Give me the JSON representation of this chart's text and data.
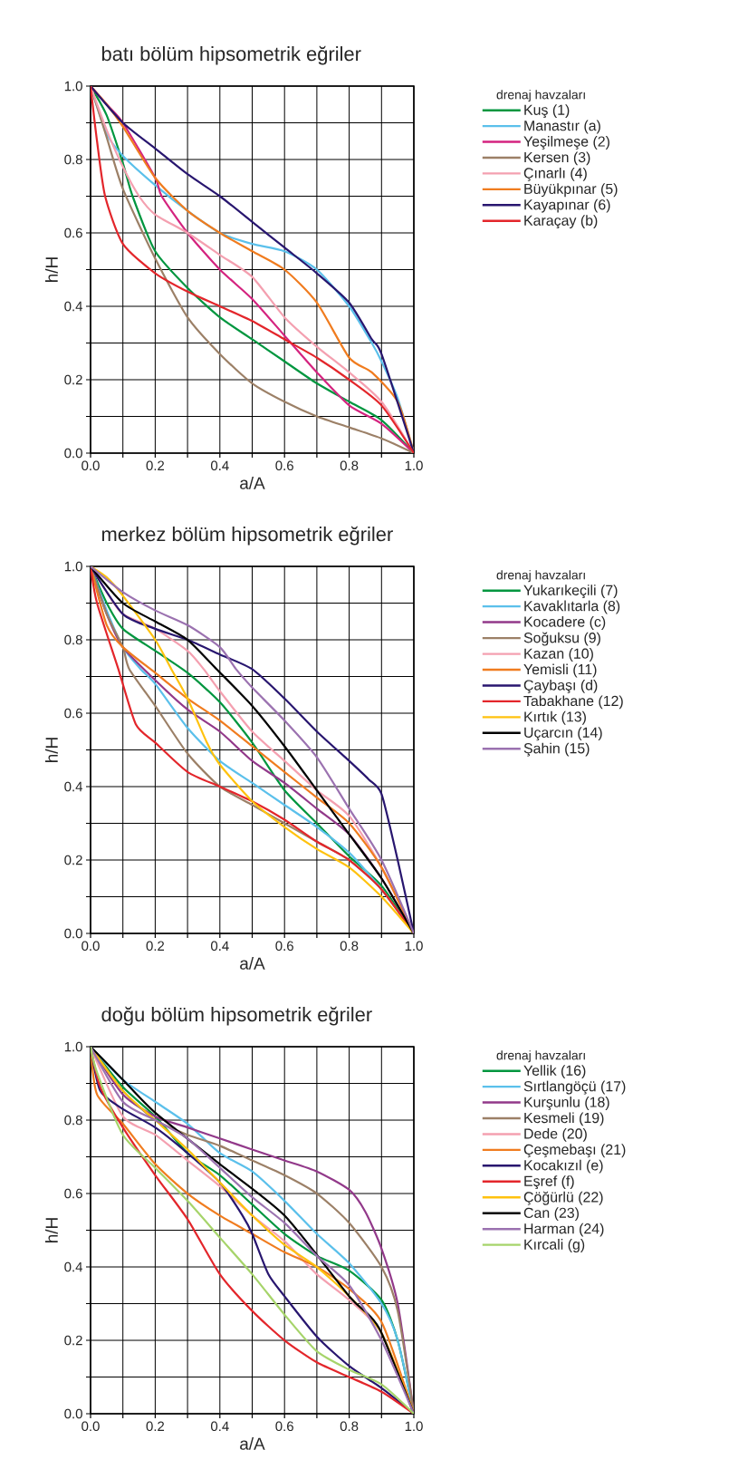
{
  "chart_data": [
    {
      "type": "line",
      "title": "batı bölüm hipsometrik eğriler",
      "xlabel": "a/A",
      "ylabel": "h/H",
      "legend_title": "drenaj havzaları",
      "legend": "right",
      "grid": true,
      "xlim": [
        0,
        1
      ],
      "ylim": [
        0,
        1
      ],
      "xticks": [
        {
          "value": 0,
          "label": "0.0"
        },
        {
          "value": 0.1,
          "label": null
        },
        {
          "value": 0.2,
          "label": "0.2"
        },
        {
          "value": 0.3,
          "label": null
        },
        {
          "value": 0.4,
          "label": "0.4"
        },
        {
          "value": 0.5,
          "label": null
        },
        {
          "value": 0.6,
          "label": "0.6"
        },
        {
          "value": 0.7,
          "label": null
        },
        {
          "value": 0.8,
          "label": "0.8"
        },
        {
          "value": 0.9,
          "label": null
        },
        {
          "value": 1,
          "label": "1.0"
        }
      ],
      "yticks": [
        {
          "value": 0,
          "label": "0.0"
        },
        {
          "value": 0.1,
          "label": null
        },
        {
          "value": 0.2,
          "label": "0.2"
        },
        {
          "value": 0.3,
          "label": null
        },
        {
          "value": 0.4,
          "label": "0.4"
        },
        {
          "value": 0.5,
          "label": null
        },
        {
          "value": 0.6,
          "label": "0.6"
        },
        {
          "value": 0.7,
          "label": null
        },
        {
          "value": 0.8,
          "label": "0.8"
        },
        {
          "value": 0.9,
          "label": null
        },
        {
          "value": 1,
          "label": "1.0"
        }
      ],
      "series": [
        {
          "name": "Kuş (1)",
          "color": "#00963f",
          "x": [
            0,
            0.05,
            0.1,
            0.13,
            0.2,
            0.3,
            0.4,
            0.5,
            0.6,
            0.7,
            0.8,
            0.9,
            1
          ],
          "values": [
            1,
            0.92,
            0.79,
            0.7,
            0.55,
            0.45,
            0.37,
            0.31,
            0.25,
            0.19,
            0.14,
            0.09,
            0
          ]
        },
        {
          "name": "Manastır (a)",
          "color": "#5bc0eb",
          "x": [
            0,
            0.05,
            0.1,
            0.2,
            0.3,
            0.4,
            0.5,
            0.6,
            0.7,
            0.8,
            0.87,
            0.9,
            0.95,
            1
          ],
          "values": [
            1,
            0.87,
            0.81,
            0.73,
            0.66,
            0.6,
            0.57,
            0.55,
            0.5,
            0.4,
            0.3,
            0.25,
            0.15,
            0
          ]
        },
        {
          "name": "Yeşilmeşe (2)",
          "color": "#d4237f",
          "x": [
            0,
            0.05,
            0.1,
            0.2,
            0.22,
            0.3,
            0.4,
            0.5,
            0.6,
            0.7,
            0.8,
            0.9,
            1
          ],
          "values": [
            1,
            0.95,
            0.9,
            0.75,
            0.7,
            0.6,
            0.5,
            0.42,
            0.32,
            0.22,
            0.13,
            0.08,
            0
          ]
        },
        {
          "name": "Kersen (3)",
          "color": "#9c8067",
          "x": [
            0,
            0.05,
            0.1,
            0.2,
            0.3,
            0.4,
            0.5,
            0.6,
            0.7,
            0.8,
            0.9,
            1
          ],
          "values": [
            1,
            0.86,
            0.72,
            0.53,
            0.37,
            0.27,
            0.19,
            0.14,
            0.1,
            0.07,
            0.04,
            0
          ]
        },
        {
          "name": "Çınarlı (4)",
          "color": "#f4a0b0",
          "x": [
            0,
            0.05,
            0.1,
            0.15,
            0.2,
            0.3,
            0.4,
            0.5,
            0.6,
            0.7,
            0.8,
            0.9,
            1
          ],
          "values": [
            1,
            0.88,
            0.78,
            0.7,
            0.65,
            0.6,
            0.54,
            0.48,
            0.37,
            0.29,
            0.22,
            0.14,
            0
          ]
        },
        {
          "name": "Büyükpınar (5)",
          "color": "#f07c1f",
          "x": [
            0,
            0.05,
            0.1,
            0.2,
            0.3,
            0.4,
            0.5,
            0.6,
            0.7,
            0.8,
            0.87,
            0.95,
            1
          ],
          "values": [
            1,
            0.95,
            0.89,
            0.75,
            0.66,
            0.6,
            0.55,
            0.5,
            0.41,
            0.26,
            0.22,
            0.14,
            0
          ]
        },
        {
          "name": "Kayapınar (6)",
          "color": "#28166f",
          "x": [
            0,
            0.1,
            0.2,
            0.3,
            0.4,
            0.5,
            0.6,
            0.7,
            0.8,
            0.87,
            0.9,
            1
          ],
          "values": [
            1,
            0.9,
            0.83,
            0.76,
            0.7,
            0.63,
            0.56,
            0.49,
            0.41,
            0.31,
            0.27,
            0
          ]
        },
        {
          "name": "Karaçay (b)",
          "color": "#e3262b",
          "x": [
            0,
            0.02,
            0.045,
            0.1,
            0.2,
            0.3,
            0.4,
            0.5,
            0.6,
            0.7,
            0.8,
            0.9,
            1
          ],
          "values": [
            1,
            0.85,
            0.7,
            0.57,
            0.49,
            0.44,
            0.4,
            0.36,
            0.31,
            0.26,
            0.2,
            0.13,
            0
          ]
        }
      ]
    },
    {
      "type": "line",
      "title": "merkez bölüm hipsometrik eğriler",
      "xlabel": "a/A",
      "ylabel": "h/H",
      "legend_title": "drenaj havzaları",
      "legend": "right",
      "grid": true,
      "xlim": [
        0,
        1
      ],
      "ylim": [
        0,
        1
      ],
      "xticks": [
        {
          "value": 0,
          "label": "0.0"
        },
        {
          "value": 0.1,
          "label": null
        },
        {
          "value": 0.2,
          "label": "0.2"
        },
        {
          "value": 0.3,
          "label": null
        },
        {
          "value": 0.4,
          "label": "0.4"
        },
        {
          "value": 0.5,
          "label": null
        },
        {
          "value": 0.6,
          "label": "0.6"
        },
        {
          "value": 0.7,
          "label": null
        },
        {
          "value": 0.8,
          "label": "0.8"
        },
        {
          "value": 0.9,
          "label": null
        },
        {
          "value": 1,
          "label": "1.0"
        }
      ],
      "yticks": [
        {
          "value": 0,
          "label": "0.0"
        },
        {
          "value": 0.1,
          "label": null
        },
        {
          "value": 0.2,
          "label": "0.2"
        },
        {
          "value": 0.3,
          "label": null
        },
        {
          "value": 0.4,
          "label": "0.4"
        },
        {
          "value": 0.5,
          "label": null
        },
        {
          "value": 0.6,
          "label": "0.6"
        },
        {
          "value": 0.7,
          "label": null
        },
        {
          "value": 0.8,
          "label": "0.8"
        },
        {
          "value": 0.9,
          "label": null
        },
        {
          "value": 1,
          "label": "1.0"
        }
      ],
      "series": [
        {
          "name": "Yukarıkeçili (7)",
          "color": "#00963f",
          "x": [
            0,
            0.05,
            0.1,
            0.2,
            0.3,
            0.4,
            0.5,
            0.6,
            0.7,
            0.8,
            0.9,
            1
          ],
          "values": [
            1,
            0.9,
            0.83,
            0.77,
            0.71,
            0.63,
            0.52,
            0.39,
            0.3,
            0.21,
            0.13,
            0
          ]
        },
        {
          "name": "Kavaklıtarla (8)",
          "color": "#5bc0eb",
          "x": [
            0,
            0.05,
            0.1,
            0.155,
            0.2,
            0.3,
            0.4,
            0.5,
            0.6,
            0.7,
            0.8,
            0.9,
            1
          ],
          "values": [
            1,
            0.88,
            0.78,
            0.72,
            0.68,
            0.56,
            0.47,
            0.41,
            0.35,
            0.29,
            0.22,
            0.12,
            0
          ]
        },
        {
          "name": "Kocadere (c)",
          "color": "#92398a",
          "x": [
            0,
            0.05,
            0.1,
            0.2,
            0.3,
            0.4,
            0.5,
            0.6,
            0.7,
            0.8,
            0.9,
            1
          ],
          "values": [
            1,
            0.87,
            0.78,
            0.69,
            0.61,
            0.55,
            0.47,
            0.41,
            0.34,
            0.27,
            0.15,
            0
          ]
        },
        {
          "name": "Soğuksu (9)",
          "color": "#9c8067",
          "x": [
            0,
            0.05,
            0.1,
            0.12,
            0.2,
            0.3,
            0.4,
            0.5,
            0.6,
            0.7,
            0.8,
            0.9,
            1
          ],
          "values": [
            1,
            0.87,
            0.78,
            0.72,
            0.62,
            0.49,
            0.4,
            0.35,
            0.3,
            0.25,
            0.2,
            0.12,
            0
          ]
        },
        {
          "name": "Kazan (10)",
          "color": "#f4a0b0",
          "x": [
            0,
            0.05,
            0.1,
            0.2,
            0.3,
            0.35,
            0.4,
            0.5,
            0.6,
            0.7,
            0.8,
            0.9,
            1
          ],
          "values": [
            1,
            0.93,
            0.87,
            0.83,
            0.77,
            0.72,
            0.66,
            0.55,
            0.47,
            0.39,
            0.32,
            0.18,
            0
          ]
        },
        {
          "name": "Yemisli (11)",
          "color": "#f07c1f",
          "x": [
            0,
            0.05,
            0.1,
            0.2,
            0.3,
            0.4,
            0.5,
            0.6,
            0.7,
            0.8,
            0.9,
            1
          ],
          "values": [
            1,
            0.84,
            0.78,
            0.71,
            0.64,
            0.58,
            0.51,
            0.44,
            0.37,
            0.3,
            0.18,
            0
          ]
        },
        {
          "name": "Çaybaşı (d)",
          "color": "#28166f",
          "x": [
            0,
            0.1,
            0.2,
            0.3,
            0.4,
            0.5,
            0.6,
            0.7,
            0.8,
            0.86,
            0.9,
            0.95,
            1
          ],
          "values": [
            1,
            0.87,
            0.83,
            0.8,
            0.76,
            0.72,
            0.64,
            0.55,
            0.47,
            0.42,
            0.38,
            0.2,
            0
          ]
        },
        {
          "name": "Tabakhane (12)",
          "color": "#e3262b",
          "x": [
            0,
            0.02,
            0.086,
            0.14,
            0.2,
            0.3,
            0.4,
            0.5,
            0.6,
            0.7,
            0.8,
            0.9,
            1
          ],
          "values": [
            1,
            0.9,
            0.72,
            0.57,
            0.52,
            0.44,
            0.4,
            0.36,
            0.31,
            0.25,
            0.2,
            0.12,
            0
          ]
        },
        {
          "name": "Kırtık (13)",
          "color": "#ffc20e",
          "x": [
            0,
            0.05,
            0.1,
            0.2,
            0.25,
            0.3,
            0.36,
            0.4,
            0.5,
            0.6,
            0.7,
            0.8,
            0.9,
            1
          ],
          "values": [
            1,
            0.97,
            0.92,
            0.8,
            0.72,
            0.64,
            0.52,
            0.46,
            0.36,
            0.29,
            0.23,
            0.18,
            0.1,
            0
          ]
        },
        {
          "name": "Uçarcın (14)",
          "color": "#000000",
          "x": [
            0,
            0.1,
            0.2,
            0.3,
            0.39,
            0.5,
            0.6,
            0.7,
            0.8,
            0.9,
            1
          ],
          "values": [
            1,
            0.9,
            0.85,
            0.8,
            0.72,
            0.62,
            0.51,
            0.39,
            0.27,
            0.15,
            0
          ]
        },
        {
          "name": "Şahin (15)",
          "color": "#9b72b0",
          "x": [
            0,
            0.1,
            0.2,
            0.3,
            0.4,
            0.45,
            0.5,
            0.6,
            0.7,
            0.8,
            0.9,
            1
          ],
          "values": [
            1,
            0.93,
            0.88,
            0.84,
            0.78,
            0.72,
            0.67,
            0.58,
            0.48,
            0.34,
            0.2,
            0
          ]
        }
      ]
    },
    {
      "type": "line",
      "title": "doğu bölüm hipsometrik eğriler",
      "xlabel": "a/A",
      "ylabel": "h/H",
      "legend_title": "drenaj havzaları",
      "legend": "right",
      "grid": true,
      "xlim": [
        0,
        1
      ],
      "ylim": [
        0,
        1
      ],
      "xticks": [
        {
          "value": 0,
          "label": "0.0"
        },
        {
          "value": 0.1,
          "label": null
        },
        {
          "value": 0.2,
          "label": "0.2"
        },
        {
          "value": 0.3,
          "label": null
        },
        {
          "value": 0.4,
          "label": "0.4"
        },
        {
          "value": 0.5,
          "label": null
        },
        {
          "value": 0.6,
          "label": "0.6"
        },
        {
          "value": 0.7,
          "label": null
        },
        {
          "value": 0.8,
          "label": "0.8"
        },
        {
          "value": 0.9,
          "label": null
        },
        {
          "value": 1,
          "label": "1.0"
        }
      ],
      "yticks": [
        {
          "value": 0,
          "label": "0.0"
        },
        {
          "value": 0.1,
          "label": null
        },
        {
          "value": 0.2,
          "label": "0.2"
        },
        {
          "value": 0.3,
          "label": null
        },
        {
          "value": 0.4,
          "label": "0.4"
        },
        {
          "value": 0.5,
          "label": null
        },
        {
          "value": 0.6,
          "label": "0.6"
        },
        {
          "value": 0.7,
          "label": null
        },
        {
          "value": 0.8,
          "label": "0.8"
        },
        {
          "value": 0.9,
          "label": null
        },
        {
          "value": 1,
          "label": "1.0"
        }
      ],
      "series": [
        {
          "name": "Yellik (16)",
          "color": "#00963f",
          "x": [
            0,
            0.1,
            0.2,
            0.3,
            0.4,
            0.5,
            0.6,
            0.7,
            0.8,
            0.9,
            0.95,
            1
          ],
          "values": [
            1,
            0.89,
            0.81,
            0.71,
            0.65,
            0.57,
            0.49,
            0.43,
            0.39,
            0.31,
            0.2,
            0
          ]
        },
        {
          "name": "Sırtlangöçü (17)",
          "color": "#5bc0eb",
          "x": [
            0,
            0.1,
            0.2,
            0.3,
            0.4,
            0.5,
            0.6,
            0.7,
            0.8,
            0.9,
            0.95,
            1
          ],
          "values": [
            1,
            0.91,
            0.85,
            0.79,
            0.71,
            0.66,
            0.58,
            0.49,
            0.41,
            0.3,
            0.2,
            0
          ]
        },
        {
          "name": "Kurşunlu (18)",
          "color": "#92398a",
          "x": [
            0,
            0.1,
            0.2,
            0.3,
            0.4,
            0.5,
            0.6,
            0.7,
            0.8,
            0.85,
            0.9,
            0.95,
            1
          ],
          "values": [
            1,
            0.87,
            0.81,
            0.78,
            0.75,
            0.72,
            0.69,
            0.66,
            0.61,
            0.55,
            0.45,
            0.3,
            0
          ]
        },
        {
          "name": "Kesmeli (19)",
          "color": "#9c8067",
          "x": [
            0,
            0.1,
            0.2,
            0.3,
            0.4,
            0.5,
            0.6,
            0.7,
            0.8,
            0.9,
            0.95,
            1
          ],
          "values": [
            1,
            0.88,
            0.8,
            0.76,
            0.73,
            0.69,
            0.65,
            0.6,
            0.52,
            0.4,
            0.28,
            0
          ]
        },
        {
          "name": "Dede (20)",
          "color": "#f4a0b0",
          "x": [
            0,
            0.1,
            0.2,
            0.3,
            0.4,
            0.5,
            0.6,
            0.7,
            0.8,
            0.9,
            1
          ],
          "values": [
            1,
            0.81,
            0.76,
            0.69,
            0.62,
            0.54,
            0.47,
            0.38,
            0.31,
            0.22,
            0
          ]
        },
        {
          "name": "Çeşmebaşı (21)",
          "color": "#f07c1f",
          "x": [
            0,
            0.02,
            0.1,
            0.2,
            0.3,
            0.4,
            0.5,
            0.6,
            0.7,
            0.8,
            0.9,
            1
          ],
          "values": [
            1,
            0.87,
            0.79,
            0.68,
            0.6,
            0.54,
            0.49,
            0.44,
            0.4,
            0.34,
            0.25,
            0
          ]
        },
        {
          "name": "Kocakızıl (e)",
          "color": "#28166f",
          "x": [
            0,
            0.03,
            0.1,
            0.2,
            0.3,
            0.4,
            0.47,
            0.5,
            0.55,
            0.6,
            0.7,
            0.8,
            0.9,
            1
          ],
          "values": [
            1,
            0.88,
            0.83,
            0.78,
            0.71,
            0.63,
            0.54,
            0.49,
            0.38,
            0.32,
            0.21,
            0.13,
            0.07,
            0
          ]
        },
        {
          "name": "Eşref (f)",
          "color": "#e3262b",
          "x": [
            0,
            0.03,
            0.1,
            0.2,
            0.3,
            0.4,
            0.5,
            0.6,
            0.7,
            0.8,
            0.9,
            1
          ],
          "values": [
            1,
            0.89,
            0.78,
            0.65,
            0.53,
            0.38,
            0.28,
            0.2,
            0.14,
            0.1,
            0.06,
            0
          ]
        },
        {
          "name": "Çöğürlü (22)",
          "color": "#ffc20e",
          "x": [
            0,
            0.1,
            0.2,
            0.3,
            0.4,
            0.5,
            0.6,
            0.7,
            0.8,
            0.9,
            1
          ],
          "values": [
            1,
            0.88,
            0.8,
            0.72,
            0.63,
            0.54,
            0.46,
            0.4,
            0.32,
            0.22,
            0
          ]
        },
        {
          "name": "Can (23)",
          "color": "#000000",
          "x": [
            0,
            0.1,
            0.2,
            0.4,
            0.6,
            0.8,
            0.86,
            0.9,
            1
          ],
          "values": [
            1,
            0.91,
            0.82,
            0.68,
            0.54,
            0.32,
            0.27,
            0.22,
            0
          ]
        },
        {
          "name": "Harman (24)",
          "color": "#9b72b0",
          "x": [
            0,
            0.1,
            0.2,
            0.3,
            0.4,
            0.5,
            0.6,
            0.7,
            0.8,
            0.9,
            1
          ],
          "values": [
            1,
            0.85,
            0.8,
            0.75,
            0.67,
            0.59,
            0.52,
            0.43,
            0.35,
            0.2,
            0
          ]
        },
        {
          "name": "Kırcali (g)",
          "color": "#a6d46a",
          "x": [
            0,
            0.02,
            0.1,
            0.2,
            0.3,
            0.4,
            0.5,
            0.6,
            0.7,
            0.8,
            0.9,
            1
          ],
          "values": [
            1,
            0.93,
            0.76,
            0.67,
            0.58,
            0.48,
            0.38,
            0.27,
            0.17,
            0.12,
            0.08,
            0
          ]
        }
      ]
    }
  ]
}
